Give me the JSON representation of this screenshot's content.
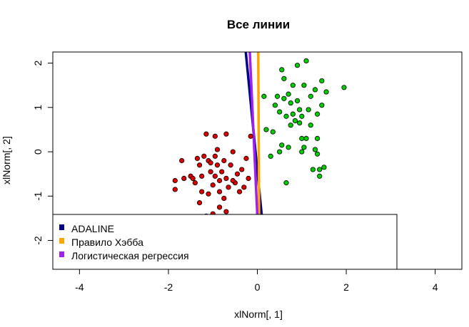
{
  "chart_data": {
    "type": "scatter",
    "title": "Все линии",
    "xlabel": "xlNorm[, 1]",
    "ylabel": "xlNorm[, 2]",
    "xlim": [
      -4.6,
      4.6
    ],
    "ylim": [
      -2.65,
      2.25
    ],
    "x_ticks": [
      -4,
      -2,
      0,
      2,
      4
    ],
    "y_ticks": [
      -2,
      -1,
      0,
      1,
      2
    ],
    "grid": false,
    "legend_position": "bottom-left",
    "colors": {
      "red_points": "#dd0000",
      "green_points": "#00cc00",
      "adaline": "#00008b",
      "hebb": "#ffa500",
      "logistic": "#a020f0"
    },
    "series": [
      {
        "kind": "points",
        "color": "#dd0000",
        "points": [
          [
            -1.7,
            -0.2
          ],
          [
            -1.85,
            -0.65
          ],
          [
            -1.85,
            -0.85
          ],
          [
            -1.65,
            -0.6
          ],
          [
            -1.5,
            -0.55
          ],
          [
            -1.45,
            -0.6
          ],
          [
            -1.4,
            -0.7
          ],
          [
            -1.35,
            -0.15
          ],
          [
            -1.3,
            -0.3
          ],
          [
            -1.25,
            -0.55
          ],
          [
            -1.25,
            -0.9
          ],
          [
            -1.2,
            -0.1
          ],
          [
            -1.15,
            0.4
          ],
          [
            -1.1,
            -0.2
          ],
          [
            -1.1,
            -0.95
          ],
          [
            -1.05,
            -0.45
          ],
          [
            -1.0,
            -0.75
          ],
          [
            -0.95,
            -0.55
          ],
          [
            -0.95,
            -0.1
          ],
          [
            -0.9,
            0.05
          ],
          [
            -0.9,
            -0.3
          ],
          [
            -0.85,
            -0.65
          ],
          [
            -0.85,
            -0.9
          ],
          [
            -0.8,
            -0.45
          ],
          [
            -0.75,
            -0.2
          ],
          [
            -0.75,
            -1.05
          ],
          [
            -0.7,
            0.4
          ],
          [
            -0.7,
            -0.6
          ],
          [
            -0.65,
            -0.8
          ],
          [
            -0.6,
            -0.3
          ],
          [
            -0.55,
            0.0
          ],
          [
            -0.5,
            -0.7
          ],
          [
            -0.45,
            -0.5
          ],
          [
            -0.4,
            -0.9
          ],
          [
            -0.35,
            -0.4
          ],
          [
            -0.3,
            -0.8
          ],
          [
            -0.25,
            -0.15
          ],
          [
            -0.2,
            -0.6
          ],
          [
            -0.15,
            0.35
          ],
          [
            -1.05,
            -0.25
          ],
          [
            -0.95,
            0.35
          ],
          [
            -1.15,
            -1.45
          ],
          [
            -1.0,
            -1.4
          ],
          [
            -0.85,
            -1.25
          ],
          [
            -0.7,
            -1.35
          ],
          [
            -1.3,
            -1.15
          ],
          [
            -0.55,
            -0.65
          ]
        ]
      },
      {
        "kind": "points",
        "color": "#00cc00",
        "points": [
          [
            0.15,
            1.25
          ],
          [
            0.2,
            0.5
          ],
          [
            0.3,
            -0.1
          ],
          [
            0.35,
            0.45
          ],
          [
            0.4,
            1.05
          ],
          [
            0.45,
            1.25
          ],
          [
            0.5,
            0.0
          ],
          [
            0.5,
            0.9
          ],
          [
            0.55,
            0.15
          ],
          [
            0.55,
            1.85
          ],
          [
            0.6,
            1.2
          ],
          [
            0.6,
            1.65
          ],
          [
            0.65,
            -0.7
          ],
          [
            0.65,
            0.8
          ],
          [
            0.7,
            0.1
          ],
          [
            0.7,
            1.3
          ],
          [
            0.75,
            1.1
          ],
          [
            0.8,
            0.85
          ],
          [
            0.8,
            1.5
          ],
          [
            0.85,
            0.7
          ],
          [
            0.9,
            1.15
          ],
          [
            0.9,
            1.95
          ],
          [
            0.95,
            0.95
          ],
          [
            0.95,
            0.65
          ],
          [
            1.0,
            0.3
          ],
          [
            1.0,
            0.0
          ],
          [
            1.0,
            0.8
          ],
          [
            1.05,
            0.1
          ],
          [
            1.05,
            1.5
          ],
          [
            1.1,
            0.3
          ],
          [
            1.1,
            2.05
          ],
          [
            1.15,
            0.95
          ],
          [
            1.2,
            0.6
          ],
          [
            1.2,
            1.25
          ],
          [
            1.25,
            -0.4
          ],
          [
            1.3,
            0.05
          ],
          [
            1.3,
            1.4
          ],
          [
            1.35,
            0.3
          ],
          [
            1.35,
            0.85
          ],
          [
            1.4,
            -0.4
          ],
          [
            1.4,
            -0.55
          ],
          [
            1.45,
            1.6
          ],
          [
            1.45,
            1.05
          ],
          [
            1.5,
            -0.35
          ],
          [
            1.55,
            1.35
          ],
          [
            1.95,
            1.45
          ],
          [
            1.35,
            -0.05
          ],
          [
            0.75,
            0.6
          ]
        ]
      }
    ],
    "lines": [
      {
        "name": "ADALINE",
        "color": "#00008b",
        "x": [
          -0.26,
          0.1
        ],
        "y": [
          2.25,
          -1.45
        ]
      },
      {
        "name": "Правило Хэбба",
        "color": "#ffa500",
        "x": [
          0.02,
          0.04
        ],
        "y": [
          2.25,
          -1.45
        ]
      },
      {
        "name": "Логистическая регрессия",
        "color": "#a020f0",
        "x": [
          -0.17,
          0.0
        ],
        "y": [
          2.25,
          -1.45
        ]
      }
    ]
  }
}
